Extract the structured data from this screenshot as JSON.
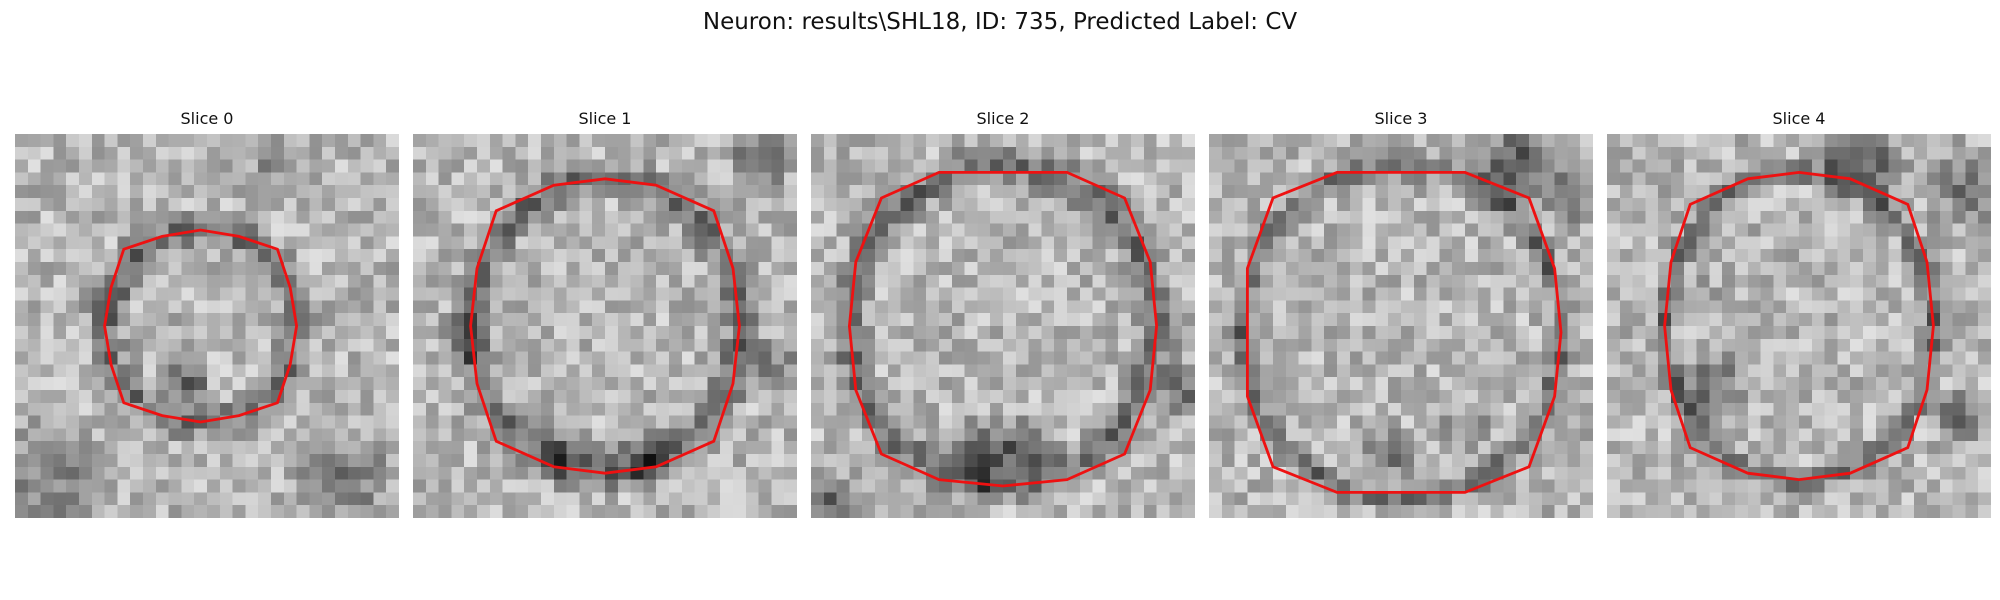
{
  "figure": {
    "title": "Neuron: results\\SHL18, ID: 735, Predicted Label: CV"
  },
  "colors": {
    "contour": "#ee1111",
    "background": "#ffffff"
  },
  "slices": [
    {
      "title": "Slice 0"
    },
    {
      "title": "Slice 1"
    },
    {
      "title": "Slice 2"
    },
    {
      "title": "Slice 3"
    },
    {
      "title": "Slice 4"
    }
  ]
}
